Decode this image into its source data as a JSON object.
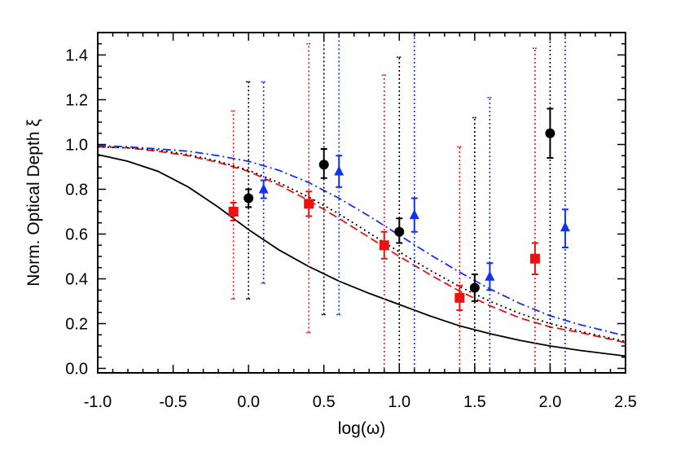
{
  "chart_data": {
    "type": "scatter",
    "title": "",
    "xlabel": "log(ω)",
    "ylabel": "Norm. Optical Depth ξ",
    "xlim": [
      -1.0,
      2.5
    ],
    "ylim": [
      -0.02,
      1.5
    ],
    "xticks": [
      -1.0,
      -0.5,
      0.0,
      0.5,
      1.0,
      1.5,
      2.0,
      2.5
    ],
    "xtick_labels": [
      "-1.0",
      "-0.5",
      "0.0",
      "0.5",
      "1.0",
      "1.5",
      "2.0",
      "2.5"
    ],
    "yticks": [
      0.0,
      0.2,
      0.4,
      0.6,
      0.8,
      1.0,
      1.2,
      1.4
    ],
    "ytick_labels": [
      "0.0",
      "0.2",
      "0.4",
      "0.6",
      "0.8",
      "1.0",
      "1.2",
      "1.4"
    ],
    "grid": false,
    "colors": {
      "black": "#000000",
      "red": "#ee1111",
      "blue": "#1133ee"
    },
    "points": [
      {
        "color": "red",
        "marker": "square",
        "x": -0.1,
        "y": 0.7,
        "err_lo": 0.66,
        "err_hi": 0.74,
        "sys_lo": 0.31,
        "sys_hi": 1.15
      },
      {
        "color": "black",
        "marker": "circle",
        "x": 0.0,
        "y": 0.76,
        "err_lo": 0.72,
        "err_hi": 0.8,
        "sys_lo": 0.31,
        "sys_hi": 1.28
      },
      {
        "color": "blue",
        "marker": "triangle",
        "x": 0.1,
        "y": 0.8,
        "err_lo": 0.76,
        "err_hi": 0.84,
        "sys_lo": 0.38,
        "sys_hi": 1.28
      },
      {
        "color": "red",
        "marker": "square",
        "x": 0.4,
        "y": 0.735,
        "err_lo": 0.68,
        "err_hi": 0.79,
        "sys_lo": 0.16,
        "sys_hi": 1.45
      },
      {
        "color": "black",
        "marker": "circle",
        "x": 0.5,
        "y": 0.91,
        "err_lo": 0.85,
        "err_hi": 0.98,
        "sys_lo": 0.24,
        "sys_hi": 1.5
      },
      {
        "color": "blue",
        "marker": "triangle",
        "x": 0.6,
        "y": 0.88,
        "err_lo": 0.81,
        "err_hi": 0.95,
        "sys_lo": 0.24,
        "sys_hi": 1.5
      },
      {
        "color": "red",
        "marker": "square",
        "x": 0.9,
        "y": 0.55,
        "err_lo": 0.49,
        "err_hi": 0.61,
        "sys_lo": -0.02,
        "sys_hi": 1.31
      },
      {
        "color": "black",
        "marker": "circle",
        "x": 1.0,
        "y": 0.61,
        "err_lo": 0.56,
        "err_hi": 0.67,
        "sys_lo": -0.02,
        "sys_hi": 1.39
      },
      {
        "color": "blue",
        "marker": "triangle",
        "x": 1.1,
        "y": 0.685,
        "err_lo": 0.61,
        "err_hi": 0.76,
        "sys_lo": -0.02,
        "sys_hi": 1.5
      },
      {
        "color": "red",
        "marker": "square",
        "x": 1.4,
        "y": 0.315,
        "err_lo": 0.26,
        "err_hi": 0.37,
        "sys_lo": -0.02,
        "sys_hi": 0.99
      },
      {
        "color": "black",
        "marker": "circle",
        "x": 1.5,
        "y": 0.36,
        "err_lo": 0.3,
        "err_hi": 0.42,
        "sys_lo": -0.02,
        "sys_hi": 1.12
      },
      {
        "color": "blue",
        "marker": "triangle",
        "x": 1.6,
        "y": 0.41,
        "err_lo": 0.35,
        "err_hi": 0.47,
        "sys_lo": -0.02,
        "sys_hi": 1.21
      },
      {
        "color": "red",
        "marker": "square",
        "x": 1.9,
        "y": 0.49,
        "err_lo": 0.42,
        "err_hi": 0.56,
        "sys_lo": -0.02,
        "sys_hi": 1.43
      },
      {
        "color": "black",
        "marker": "circle",
        "x": 2.0,
        "y": 1.05,
        "err_lo": 0.94,
        "err_hi": 1.16,
        "sys_lo": -0.02,
        "sys_hi": 1.5
      },
      {
        "color": "blue",
        "marker": "triangle",
        "x": 2.1,
        "y": 0.63,
        "err_lo": 0.54,
        "err_hi": 0.71,
        "sys_lo": -0.02,
        "sys_hi": 1.5
      }
    ],
    "curves": [
      {
        "color": "black",
        "style": "solid",
        "x": [
          -1.0,
          -0.8,
          -0.6,
          -0.4,
          -0.2,
          0.0,
          0.2,
          0.4,
          0.6,
          0.8,
          1.0,
          1.2,
          1.4,
          1.6,
          1.8,
          2.0,
          2.2,
          2.5
        ],
        "y": [
          0.955,
          0.925,
          0.88,
          0.81,
          0.72,
          0.62,
          0.53,
          0.455,
          0.39,
          0.335,
          0.285,
          0.235,
          0.19,
          0.155,
          0.125,
          0.1,
          0.08,
          0.055
        ]
      },
      {
        "color": "red",
        "style": "dash",
        "x": [
          -1.0,
          -0.8,
          -0.6,
          -0.4,
          -0.2,
          0.0,
          0.2,
          0.4,
          0.6,
          0.8,
          1.0,
          1.2,
          1.4,
          1.6,
          1.8,
          2.0,
          2.2,
          2.5
        ],
        "y": [
          0.99,
          0.985,
          0.97,
          0.95,
          0.92,
          0.88,
          0.82,
          0.75,
          0.67,
          0.585,
          0.5,
          0.42,
          0.345,
          0.28,
          0.225,
          0.185,
          0.16,
          0.115
        ]
      },
      {
        "color": "black",
        "style": "dot",
        "x": [
          -1.0,
          -0.8,
          -0.6,
          -0.4,
          -0.2,
          0.0,
          0.2,
          0.4,
          0.6,
          0.8,
          1.0,
          1.2,
          1.4,
          1.6,
          1.8,
          2.0,
          2.2,
          2.5
        ],
        "y": [
          0.99,
          0.985,
          0.975,
          0.955,
          0.925,
          0.885,
          0.83,
          0.765,
          0.69,
          0.605,
          0.52,
          0.44,
          0.365,
          0.3,
          0.245,
          0.2,
          0.165,
          0.12
        ]
      },
      {
        "color": "blue",
        "style": "dashdot",
        "x": [
          -1.0,
          -0.8,
          -0.6,
          -0.4,
          -0.2,
          0.0,
          0.2,
          0.4,
          0.6,
          0.8,
          1.0,
          1.2,
          1.4,
          1.6,
          1.8,
          2.0,
          2.2,
          2.5
        ],
        "y": [
          0.995,
          0.99,
          0.98,
          0.97,
          0.95,
          0.925,
          0.885,
          0.83,
          0.76,
          0.68,
          0.595,
          0.51,
          0.43,
          0.355,
          0.29,
          0.235,
          0.195,
          0.145
        ]
      }
    ]
  }
}
